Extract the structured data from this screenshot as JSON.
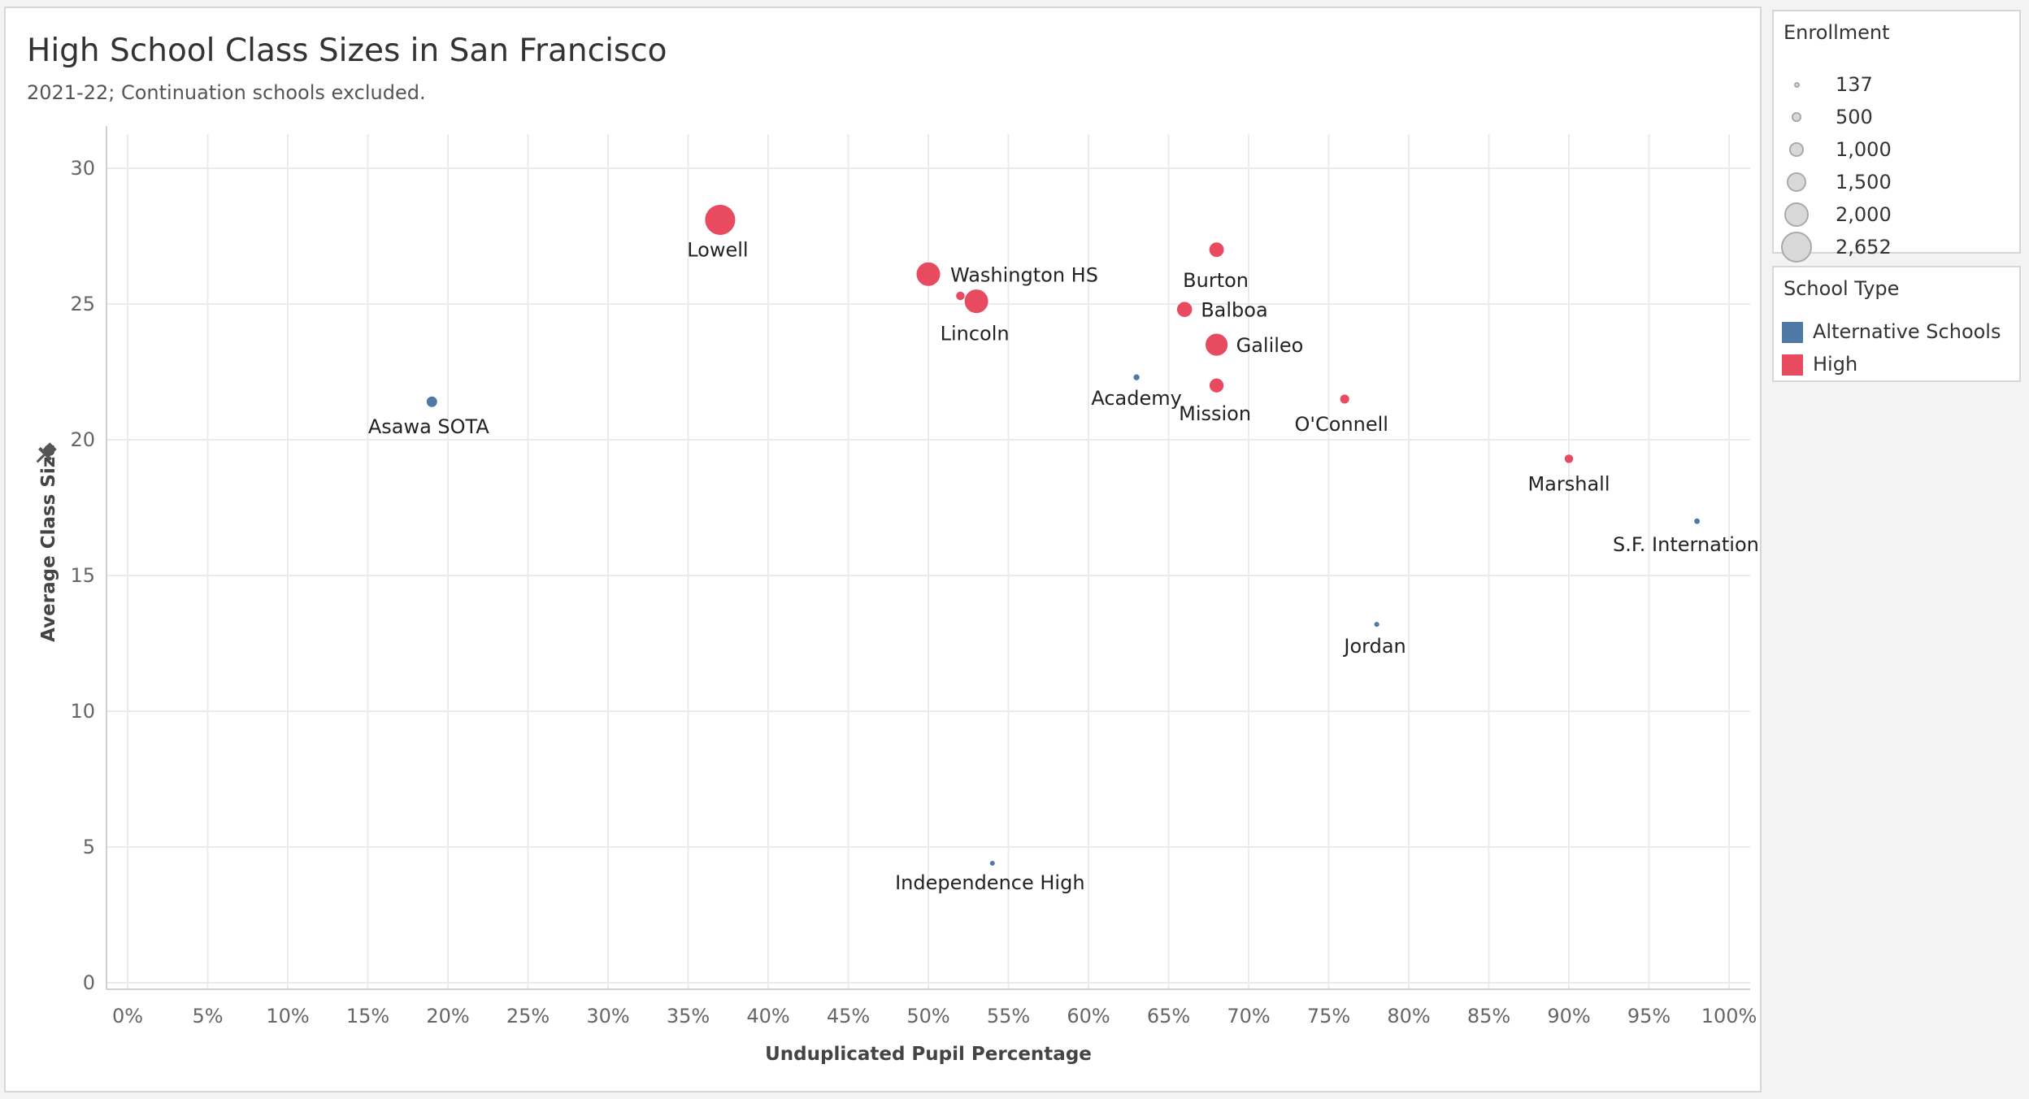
{
  "colors": {
    "alternative": "#4e79a7",
    "high": "#e84a5f",
    "grid": "#ebebeb"
  },
  "chart_data": {
    "type": "scatter",
    "title": "High School Class Sizes in San Francisco",
    "subtitle": "2021-22; Continuation schools excluded.",
    "xlabel": "Unduplicated Pupil Percentage",
    "ylabel": "Average Class Size",
    "x_format": "percent",
    "xlim": [
      0,
      100
    ],
    "ylim": [
      0,
      30
    ],
    "x_ticks": [
      0,
      5,
      10,
      15,
      20,
      25,
      30,
      35,
      40,
      45,
      50,
      55,
      60,
      65,
      70,
      75,
      80,
      85,
      90,
      95,
      100
    ],
    "x_tick_labels": [
      "0%",
      "5%",
      "10%",
      "15%",
      "20%",
      "25%",
      "30%",
      "35%",
      "40%",
      "45%",
      "50%",
      "55%",
      "60%",
      "65%",
      "70%",
      "75%",
      "80%",
      "85%",
      "90%",
      "95%",
      "100%"
    ],
    "y_ticks": [
      0,
      5,
      10,
      15,
      20,
      25,
      30
    ],
    "y_tick_labels": [
      "0",
      "5",
      "10",
      "15",
      "20",
      "25",
      "30"
    ],
    "grid": true,
    "legend_position": "right",
    "color_by": "School Type",
    "size_by": "Enrollment",
    "points": [
      {
        "label": "Lowell",
        "x": 37,
        "y": 28.1,
        "enrollment": 2652,
        "type": "High"
      },
      {
        "label": "Washington HS",
        "x": 50,
        "y": 26.1,
        "enrollment": 2000,
        "type": "High"
      },
      {
        "label": "",
        "x": 52,
        "y": 25.3,
        "enrollment": 500,
        "type": "High"
      },
      {
        "label": "Lincoln",
        "x": 53,
        "y": 25.1,
        "enrollment": 2000,
        "type": "High"
      },
      {
        "label": "Burton",
        "x": 68,
        "y": 27.0,
        "enrollment": 1100,
        "type": "High"
      },
      {
        "label": "Balboa",
        "x": 66,
        "y": 24.8,
        "enrollment": 1150,
        "type": "High"
      },
      {
        "label": "Galileo",
        "x": 68,
        "y": 23.5,
        "enrollment": 1850,
        "type": "High"
      },
      {
        "label": "Mission",
        "x": 68,
        "y": 22.0,
        "enrollment": 1050,
        "type": "High"
      },
      {
        "label": "O'Connell",
        "x": 76,
        "y": 21.5,
        "enrollment": 550,
        "type": "High"
      },
      {
        "label": "Marshall",
        "x": 90,
        "y": 19.3,
        "enrollment": 500,
        "type": "High"
      },
      {
        "label": "Asawa SOTA",
        "x": 19,
        "y": 21.4,
        "enrollment": 700,
        "type": "Alternative Schools"
      },
      {
        "label": "Academy",
        "x": 63,
        "y": 22.3,
        "enrollment": 250,
        "type": "Alternative Schools"
      },
      {
        "label": "S.F. International",
        "x": 98,
        "y": 17.0,
        "enrollment": 200,
        "type": "Alternative Schools"
      },
      {
        "label": "Jordan",
        "x": 78,
        "y": 13.2,
        "enrollment": 150,
        "type": "Alternative Schools"
      },
      {
        "label": "Independence High",
        "x": 54,
        "y": 4.4,
        "enrollment": 137,
        "type": "Alternative Schools"
      }
    ]
  },
  "legend_enrollment": {
    "title": "Enrollment",
    "items": [
      {
        "value": 137,
        "label": "137"
      },
      {
        "value": 500,
        "label": "500"
      },
      {
        "value": 1000,
        "label": "1,000"
      },
      {
        "value": 1500,
        "label": "1,500"
      },
      {
        "value": 2000,
        "label": "2,000"
      },
      {
        "value": 2652,
        "label": "2,652"
      }
    ]
  },
  "legend_type": {
    "title": "School Type",
    "items": [
      {
        "label": "Alternative Schools",
        "color": "#4e79a7"
      },
      {
        "label": "High",
        "color": "#e84a5f"
      }
    ]
  }
}
